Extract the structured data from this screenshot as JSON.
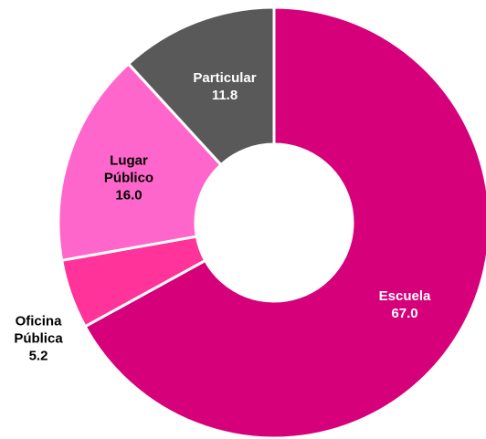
{
  "chart_data": {
    "type": "donut",
    "categories": [
      "Escuela",
      "Oficina Pública",
      "Lugar Público",
      "Particular"
    ],
    "values": [
      67.0,
      5.2,
      16.0,
      11.8
    ],
    "value_labels": [
      "67.0",
      "5.2",
      "16.0",
      "11.8"
    ],
    "colors": [
      "#d6007b",
      "#ff3399",
      "#ff66cc",
      "#595959"
    ]
  }
}
